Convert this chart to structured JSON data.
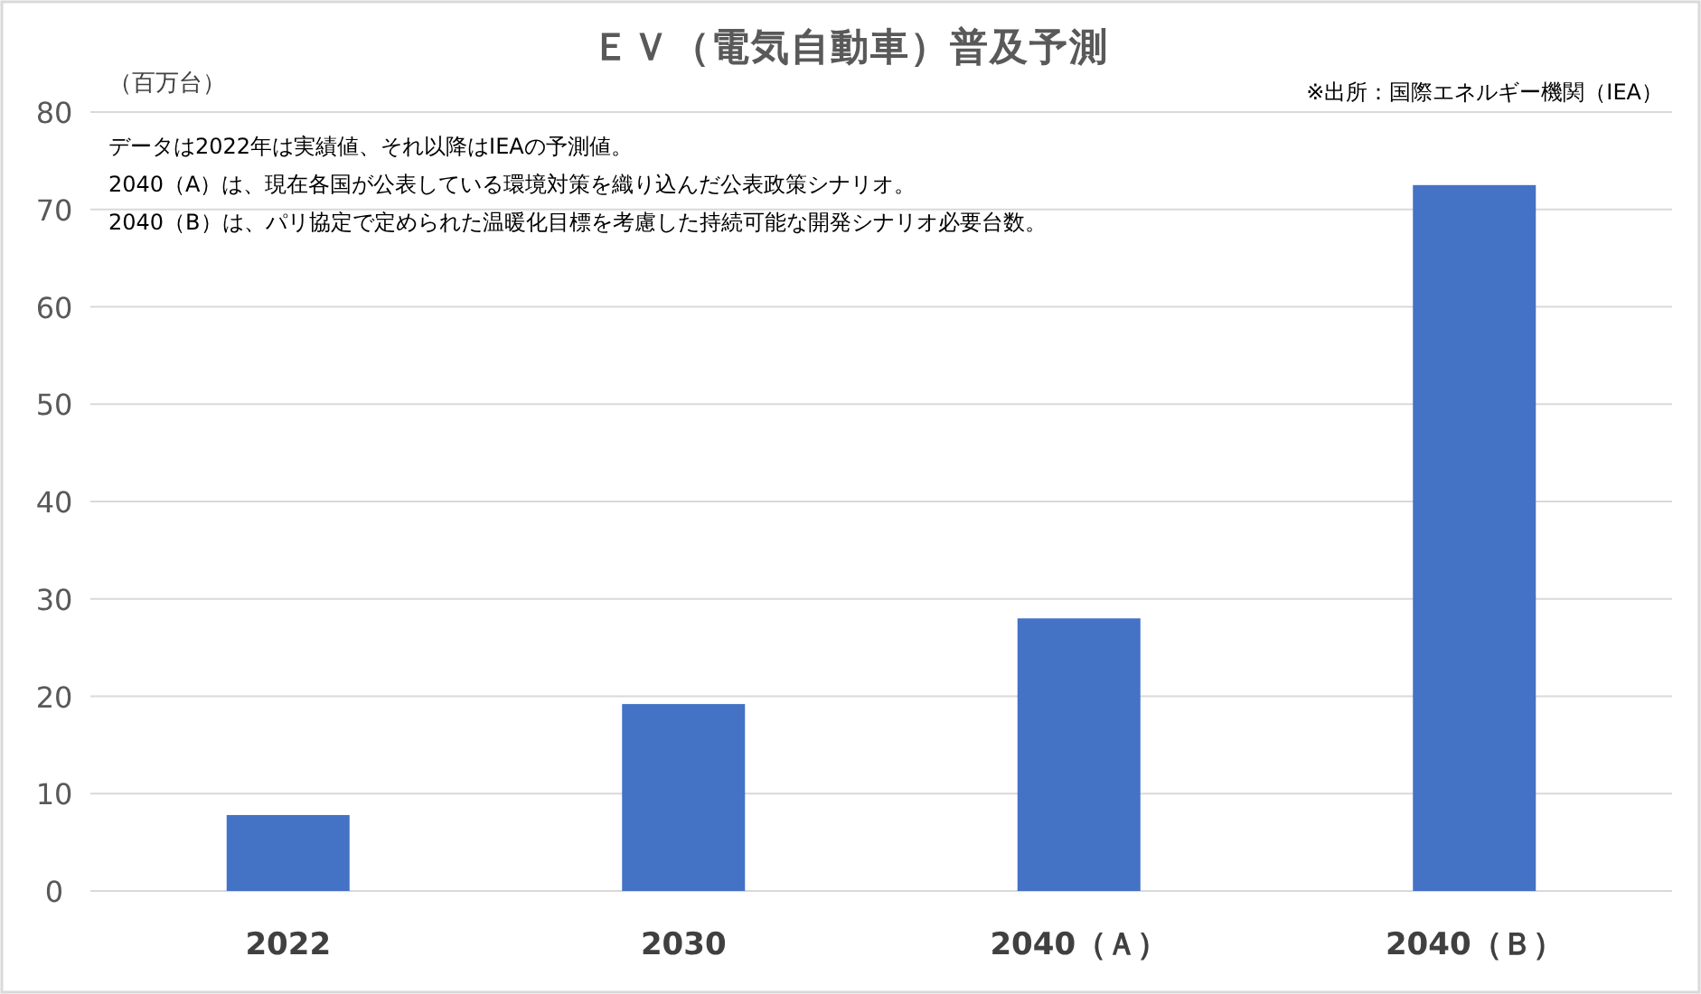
{
  "chart_data": {
    "type": "bar",
    "title": "ＥＶ（電気自動車）普及予測",
    "ylabel": "（百万台）",
    "categories": [
      "2022",
      "2030",
      "2040（Ａ）",
      "2040（Ｂ）"
    ],
    "values": [
      7.8,
      19.2,
      28,
      72.5
    ],
    "color": "#4472c4",
    "ylim": [
      0,
      80
    ],
    "yticks": [
      0,
      10,
      20,
      30,
      40,
      50,
      60,
      70,
      80
    ],
    "grid": "y",
    "annotations": [
      "データは2022年は実績値、それ以降はIEAの予測値。",
      "2040（A）は、現在各国が公表している環境対策を織り込んだ公表政策シナリオ。",
      "2040（B）は、パリ協定で定められた温暖化目標を考慮した持続可能な開発シナリオ必要台数。",
      "※出所：国際エネルギー機関（IEA）"
    ]
  }
}
